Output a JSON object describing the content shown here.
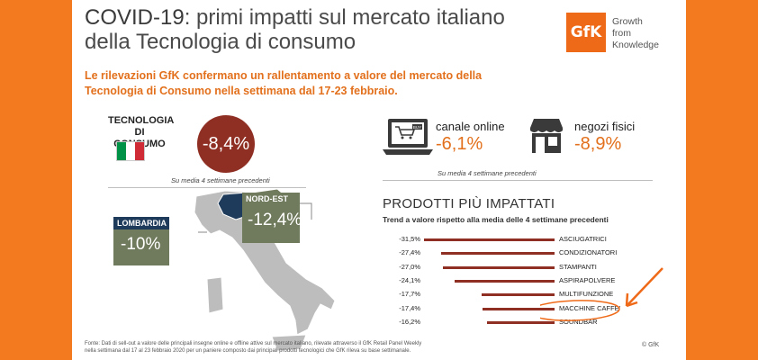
{
  "header": {
    "title_part1": "COVID-19",
    "title_part2": ": primi impatti sul mercato italiano",
    "title_line2": "della Tecnologia di consumo",
    "subtitle_line1": "Le rilevazioni GfK confermano un rallentamento a valore del mercato della",
    "subtitle_line2": "Tecnologia  di Consumo nella settimana dal 17-23 febbraio."
  },
  "logo": {
    "mark": "GfK",
    "line1": "Growth",
    "line2": "from",
    "line3": "Knowledge"
  },
  "tech": {
    "label_line1": "TECNOLOGIA",
    "label_line2": "DI CONSUMO",
    "value": "-8,4%",
    "note": "Su media 4 settimane precedenti",
    "flag_colors": [
      "#009246",
      "#ffffff",
      "#ce2b37"
    ]
  },
  "channels": {
    "online_label": "canale online",
    "online_value": "-6,1%",
    "buy_text": "BUY",
    "physical_label": "negozi fisici",
    "physical_value": "-8,9%",
    "note": "Su media 4 settimane precedenti"
  },
  "regions": {
    "lombardia_name": "LOMBARDIA",
    "lombardia_value": "-10%",
    "nordest_name": "NORD-EST",
    "nordest_value": "-12,4%"
  },
  "products": {
    "title": "PRODOTTI PIÙ IMPATTATI",
    "subtitle": "Trend a valore rispetto alla media delle 4 settimane precedenti",
    "items": [
      {
        "pct": "-31,5%",
        "label": "ASCIUGATRICI",
        "value": -31.5
      },
      {
        "pct": "-27,4%",
        "label": "CONDIZIONATORI",
        "value": -27.4
      },
      {
        "pct": "-27,0%",
        "label": "STAMPANTI",
        "value": -27.0
      },
      {
        "pct": "-24,1%",
        "label": "ASPIRAPOLVERE",
        "value": -24.1
      },
      {
        "pct": "-17,7%",
        "label": "MULTIFUNZIONE",
        "value": -17.7
      },
      {
        "pct": "-17,4%",
        "label": "MACCHINE CAFFE'",
        "value": -17.4
      },
      {
        "pct": "-16,2%",
        "label": "SOUNDBAR",
        "value": -16.2
      }
    ]
  },
  "footer": {
    "line1": "Fonte: Dati di sell-out a valore delle principali insegne online e offline attive sul mercato italiano, rilevate attraverso il GfK Retail Panel Weekly",
    "line2": "nella settimana dal 17 al 23 febbraio 2020 per un paniere composto dai principali  prodotti tecnologici che GfK rileva su base settimanale.",
    "copyright": "© GfK"
  },
  "colors": {
    "background": "#f47a1f",
    "accent": "#e2701c",
    "dark_red": "#8f2e23",
    "navy": "#1f3b5b",
    "olive": "#707a5c"
  }
}
